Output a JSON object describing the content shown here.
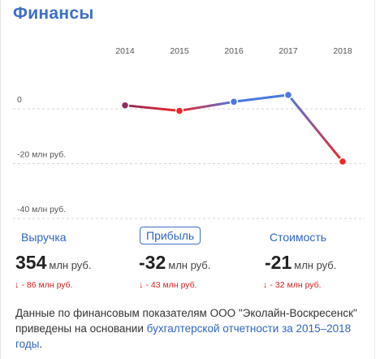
{
  "title": "Финансы",
  "chart_data": {
    "type": "line",
    "categories": [
      "2014",
      "2015",
      "2016",
      "2017",
      "2018"
    ],
    "values": [
      -0.5,
      -2.5,
      0.8,
      3.3,
      -21
    ],
    "ytick_labels": [
      {
        "value": 0,
        "label": "0"
      },
      {
        "value": -20,
        "label": "-20 млн руб."
      },
      {
        "value": -40,
        "label": "-40 млн руб."
      }
    ],
    "ylim": [
      -45,
      5
    ],
    "grid": true,
    "colors": {
      "positive": "#4a78e0",
      "negative": "#f02525",
      "neutral": "#8e2b5e"
    }
  },
  "tabs": [
    {
      "label": "Выручка",
      "active": false
    },
    {
      "label": "Прибыль",
      "active": true
    },
    {
      "label": "Стоимость",
      "active": false
    }
  ],
  "metrics": [
    {
      "value": "354",
      "unit": "млн руб.",
      "delta": "- 86 млн руб."
    },
    {
      "value": "-32",
      "unit": "млн руб.",
      "delta": "- 43 млн руб."
    },
    {
      "value": "-21",
      "unit": "млн руб.",
      "delta": "- 32 млн руб."
    }
  ],
  "note": {
    "text": "Данные по финансовым показателям ООО \"Эколайн-Воскресенск\" приведены на основании ",
    "link": "бухгалтерской отчетности за 2015–2018 годы",
    "end": "."
  }
}
